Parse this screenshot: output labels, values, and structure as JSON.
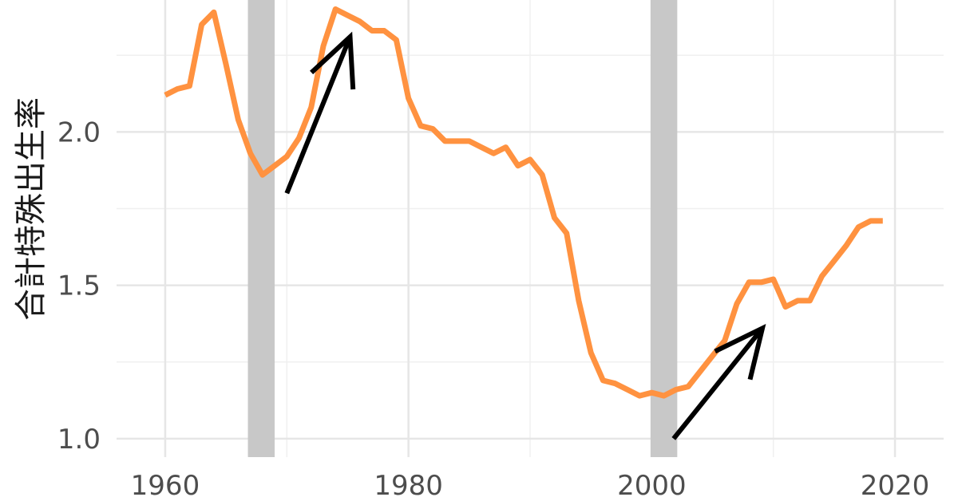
{
  "chart_data": {
    "type": "line",
    "ylabel": "合計特殊出生率",
    "xlabel": "",
    "xlim": [
      1956,
      2024
    ],
    "ylim": [
      0.94,
      2.43
    ],
    "x_ticks": [
      1960,
      1980,
      2000,
      2020
    ],
    "x_tick_labels": [
      "1960",
      "1980",
      "2000",
      "2020"
    ],
    "y_ticks": [
      1.0,
      1.5,
      2.0
    ],
    "y_tick_labels": [
      "1.0",
      "1.5",
      "2.0"
    ],
    "grid": true,
    "legend": "none",
    "series_color": "#ff9240",
    "band_color": "#c8c8c8",
    "arrow_color": "#000000",
    "shaded_bands": [
      {
        "from": 1966.8,
        "to": 1969.0
      },
      {
        "from": 1999.9,
        "to": 2002.1
      }
    ],
    "arrows": [
      {
        "from": [
          1970.0,
          1.8
        ],
        "to": [
          1975.2,
          2.31
        ]
      },
      {
        "from": [
          2001.8,
          1.0
        ],
        "to": [
          2009.1,
          1.36
        ]
      }
    ],
    "series": [
      {
        "x": [
          1960,
          1961,
          1962,
          1963,
          1964,
          1965,
          1966,
          1967,
          1968,
          1969,
          1970,
          1971,
          1972,
          1973,
          1974,
          1975,
          1976,
          1977,
          1978,
          1979,
          1980,
          1981,
          1982,
          1983,
          1984,
          1985,
          1986,
          1987,
          1988,
          1989,
          1990,
          1991,
          1992,
          1993,
          1994,
          1995,
          1996,
          1997,
          1998,
          1999,
          2000,
          2001,
          2002,
          2003,
          2004,
          2005,
          2006,
          2007,
          2008,
          2009,
          2010,
          2011,
          2012,
          2013,
          2014,
          2015,
          2016,
          2017,
          2018,
          2019
        ],
        "values": [
          2.12,
          2.14,
          2.15,
          2.35,
          2.39,
          2.22,
          2.04,
          1.93,
          1.86,
          1.89,
          1.92,
          1.98,
          2.08,
          2.28,
          2.4,
          2.38,
          2.36,
          2.33,
          2.33,
          2.3,
          2.11,
          2.02,
          2.01,
          1.97,
          1.97,
          1.97,
          1.95,
          1.93,
          1.95,
          1.89,
          1.91,
          1.86,
          1.72,
          1.67,
          1.45,
          1.28,
          1.19,
          1.18,
          1.16,
          1.14,
          1.15,
          1.14,
          1.16,
          1.17,
          1.22,
          1.27,
          1.32,
          1.44,
          1.51,
          1.51,
          1.52,
          1.43,
          1.45,
          1.45,
          1.53,
          1.58,
          1.63,
          1.69,
          1.71,
          1.71
        ]
      }
    ]
  }
}
